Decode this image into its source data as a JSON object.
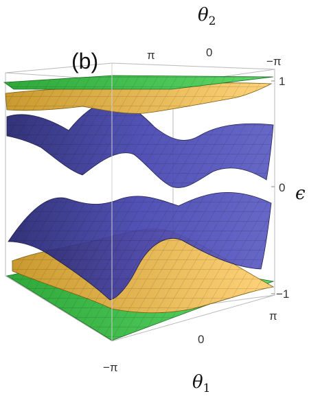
{
  "chart_data": {
    "type": "surface3d",
    "panel_label": "(b)",
    "axes": {
      "theta1": {
        "label": "θ1",
        "label_main": "θ",
        "label_sub": "1",
        "ticks": [
          "−π",
          "0",
          "π"
        ],
        "range": [
          -3.14159,
          3.14159
        ]
      },
      "theta2": {
        "label": "θ2",
        "label_main": "θ",
        "label_sub": "2",
        "ticks": [
          "π",
          "0",
          "−π"
        ],
        "range": [
          -3.14159,
          3.14159
        ]
      },
      "epsilon": {
        "label": "ϵ",
        "ticks": [
          "−1",
          "0",
          "1"
        ],
        "range": [
          -1,
          1
        ]
      }
    },
    "surfaces": [
      {
        "band": "top-green",
        "color": "#3fc94a",
        "approx_range": [
          0.95,
          1.0
        ]
      },
      {
        "band": "upper-yellow",
        "color": "#f2c14e",
        "approx_range": [
          0.7,
          0.95
        ]
      },
      {
        "band": "upper-blue",
        "color": "#3a3aa8",
        "approx_range": [
          0.1,
          0.75
        ]
      },
      {
        "band": "lower-blue",
        "color": "#3a3aa8",
        "approx_range": [
          -0.75,
          -0.1
        ]
      },
      {
        "band": "lower-yellow",
        "color": "#f2c14e",
        "approx_range": [
          -0.95,
          -0.7
        ]
      },
      {
        "band": "bottom-green",
        "color": "#3fc94a",
        "approx_range": [
          -1.0,
          -0.95
        ]
      }
    ],
    "grid": false,
    "box": true
  }
}
